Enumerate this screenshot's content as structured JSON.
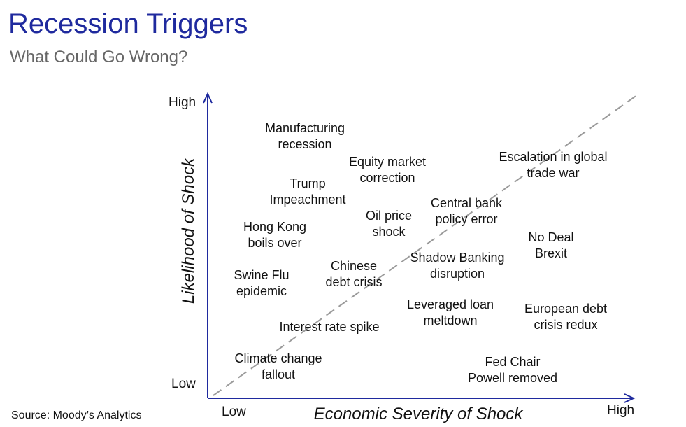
{
  "title": "Recession Triggers",
  "subtitle": "What Could Go Wrong?",
  "colors": {
    "title": "#1f2a9e",
    "axis": "#1f2a9e",
    "diagonal": "#9a9a9a",
    "text": "#111111"
  },
  "axes": {
    "y_label": "Likelihood of Shock",
    "x_label": "Economic Severity of Shock",
    "y_high": "High",
    "y_low": "Low",
    "x_low": "Low",
    "x_high": "High"
  },
  "triggers": [
    {
      "lines": [
        "Manufacturing",
        "recession"
      ]
    },
    {
      "lines": [
        "Equity market",
        "correction"
      ]
    },
    {
      "lines": [
        "Trump",
        "Impeachment"
      ]
    },
    {
      "lines": [
        "Escalation in global",
        "trade war"
      ]
    },
    {
      "lines": [
        "Oil price",
        "shock"
      ]
    },
    {
      "lines": [
        "Central bank",
        "policy error"
      ]
    },
    {
      "lines": [
        "Hong Kong",
        "boils over"
      ]
    },
    {
      "lines": [
        "No Deal",
        "Brexit"
      ]
    },
    {
      "lines": [
        "Chinese",
        "debt crisis"
      ]
    },
    {
      "lines": [
        "Shadow Banking",
        "disruption"
      ]
    },
    {
      "lines": [
        "Swine Flu",
        "epidemic"
      ]
    },
    {
      "lines": [
        "Leveraged loan",
        "meltdown"
      ]
    },
    {
      "lines": [
        "European debt",
        "crisis redux"
      ]
    },
    {
      "lines": [
        "Interest rate spike"
      ]
    },
    {
      "lines": [
        "Climate change",
        "fallout"
      ]
    },
    {
      "lines": [
        "Fed Chair",
        "Powell removed"
      ]
    }
  ],
  "source": "Source: Moody’s Analytics"
}
